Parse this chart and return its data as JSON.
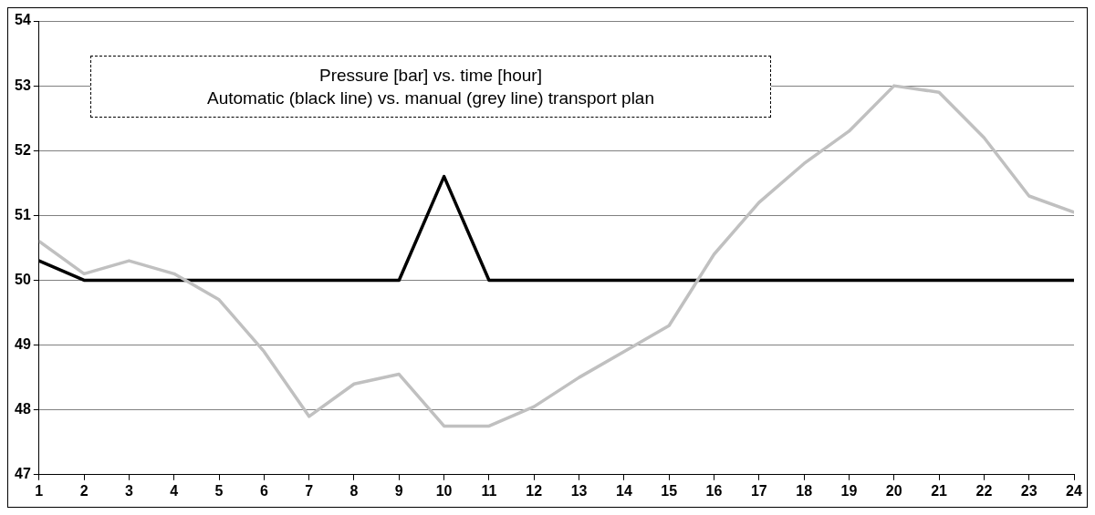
{
  "chart_data": {
    "type": "line",
    "annotations": [
      "Pressure [bar] vs. time [hour]",
      "Automatic (black line) vs. manual (grey line) transport plan"
    ],
    "x": [
      1,
      2,
      3,
      4,
      5,
      6,
      7,
      8,
      9,
      10,
      11,
      12,
      13,
      14,
      15,
      16,
      17,
      18,
      19,
      20,
      21,
      22,
      23,
      24
    ],
    "series": [
      {
        "color": "#c0c0c0",
        "values": [
          50.6,
          50.1,
          50.3,
          50.1,
          49.7,
          48.9,
          47.9,
          48.4,
          48.55,
          47.75,
          47.75,
          48.05,
          48.5,
          48.9,
          49.3,
          50.4,
          51.2,
          51.8,
          52.3,
          53.0,
          52.9,
          52.2,
          51.3,
          51.05
        ]
      },
      {
        "color": "#000000",
        "values": [
          50.3,
          50,
          50,
          50,
          50,
          50,
          50,
          50,
          50,
          51.6,
          50,
          50,
          50,
          50,
          50,
          50,
          50,
          50,
          50,
          50,
          50,
          50,
          50,
          50
        ]
      }
    ],
    "xlim": [
      1,
      24
    ],
    "xticks": [
      1,
      2,
      3,
      4,
      5,
      6,
      7,
      8,
      9,
      10,
      11,
      12,
      13,
      14,
      15,
      16,
      17,
      18,
      19,
      20,
      21,
      22,
      23,
      24
    ],
    "ylim": [
      47,
      54
    ],
    "yticks": [
      47,
      48,
      49,
      50,
      51,
      52,
      53,
      54
    ],
    "grid": "y",
    "legend": false,
    "marker": "none",
    "line_style": "solid"
  }
}
